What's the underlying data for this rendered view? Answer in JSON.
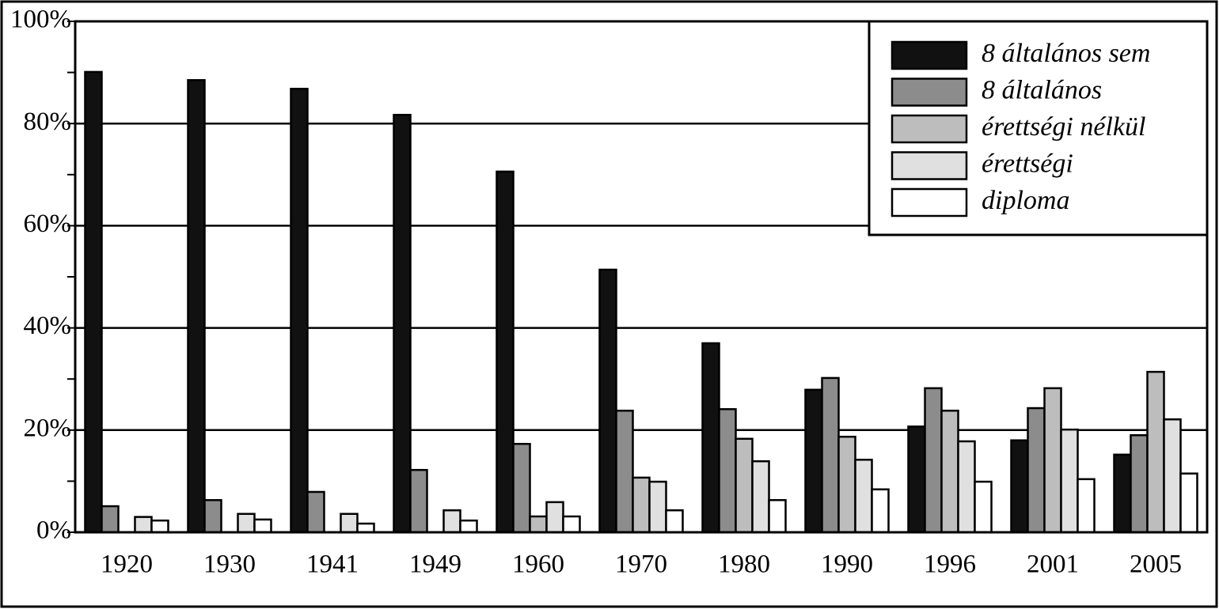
{
  "chart_data": {
    "type": "bar",
    "categories": [
      "1920",
      "1930",
      "1941",
      "1949",
      "1960",
      "1970",
      "1980",
      "1990",
      "1996",
      "2001",
      "2005"
    ],
    "series": [
      {
        "name": "8 általános sem",
        "color": "#111111",
        "values": [
          90.1,
          88.5,
          86.8,
          81.7,
          70.6,
          51.4,
          37.0,
          27.9,
          20.7,
          18.0,
          15.2
        ]
      },
      {
        "name": "8 általános",
        "color": "#8c8c8c",
        "values": [
          5.1,
          6.3,
          7.9,
          12.2,
          17.3,
          23.8,
          24.1,
          30.2,
          28.2,
          24.3,
          19.0
        ]
      },
      {
        "name": "érettségi nélkül",
        "color": "#bdbdbd",
        "values": [
          null,
          null,
          null,
          null,
          3.1,
          10.7,
          18.3,
          18.7,
          23.8,
          28.2,
          31.4
        ]
      },
      {
        "name": "érettségi",
        "color": "#e0e0e0",
        "values": [
          3.0,
          3.6,
          3.6,
          4.3,
          5.9,
          9.9,
          13.9,
          14.2,
          17.8,
          20.1,
          22.1
        ]
      },
      {
        "name": "diploma",
        "color": "#ffffff",
        "values": [
          2.3,
          2.5,
          1.7,
          2.3,
          3.1,
          4.3,
          6.3,
          8.4,
          9.9,
          10.4,
          11.5
        ]
      }
    ],
    "ylim": [
      0,
      100
    ],
    "yticks": [
      {
        "value": 0,
        "label": "0%"
      },
      {
        "value": 20,
        "label": "20%"
      },
      {
        "value": 40,
        "label": "40%"
      },
      {
        "value": 60,
        "label": "60%"
      },
      {
        "value": 80,
        "label": "80%"
      },
      {
        "value": 100,
        "label": "100%"
      }
    ],
    "minor_yticks": [
      10,
      30,
      50,
      70,
      90
    ],
    "grid": true,
    "legend": "upper right"
  }
}
